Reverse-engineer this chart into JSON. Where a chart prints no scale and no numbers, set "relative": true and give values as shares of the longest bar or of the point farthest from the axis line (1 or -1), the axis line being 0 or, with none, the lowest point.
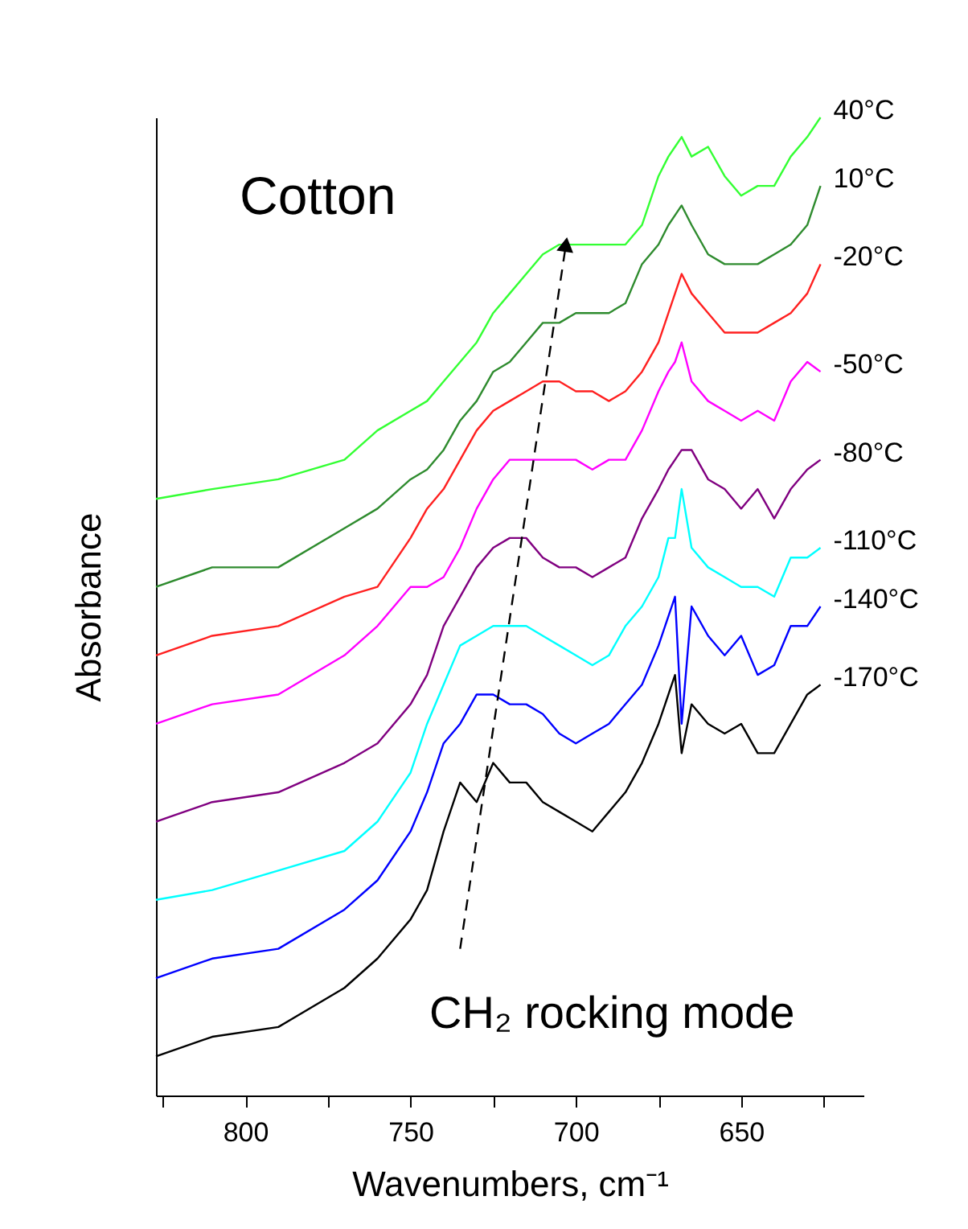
{
  "chart_data": {
    "type": "line",
    "relative": true,
    "xlabel": "Wavenumbers, cm⁻¹",
    "ylabel": "Absorbance",
    "annotations": [
      "Cotton",
      "CH₂ rocking mode"
    ],
    "xlim": [
      827,
      613
    ],
    "xticks": [
      {
        "value": 825,
        "label": null
      },
      800,
      {
        "value": 775,
        "label": null
      },
      750,
      {
        "value": 725,
        "label": null
      },
      700,
      {
        "value": 675,
        "label": null
      },
      650,
      {
        "value": 625,
        "label": null
      }
    ],
    "grid": false,
    "x": [
      827,
      810,
      790,
      770,
      760,
      750,
      745,
      740,
      735,
      730,
      725,
      720,
      715,
      710,
      705,
      700,
      695,
      690,
      685,
      680,
      675,
      672,
      670,
      668,
      665,
      660,
      655,
      650,
      645,
      640,
      635,
      630,
      626
    ],
    "series": [
      {
        "name": "40°C",
        "color": "#33ff33",
        "values": [
          0.61,
          0.62,
          0.63,
          0.65,
          0.68,
          0.7,
          0.71,
          0.73,
          0.75,
          0.77,
          0.8,
          0.82,
          0.84,
          0.86,
          0.87,
          0.87,
          0.87,
          0.87,
          0.87,
          0.89,
          0.94,
          0.96,
          0.97,
          0.98,
          0.96,
          0.97,
          0.94,
          0.92,
          0.93,
          0.93,
          0.96,
          0.98,
          1
        ]
      },
      {
        "name": "10°C",
        "color": "#2e8b2e",
        "values": [
          0.52,
          0.54,
          0.54,
          0.58,
          0.6,
          0.63,
          0.64,
          0.66,
          0.69,
          0.71,
          0.74,
          0.75,
          0.77,
          0.79,
          0.79,
          0.8,
          0.8,
          0.8,
          0.81,
          0.85,
          0.87,
          0.89,
          0.9,
          0.91,
          0.89,
          0.86,
          0.85,
          0.85,
          0.85,
          0.86,
          0.87,
          0.89,
          0.93
        ]
      },
      {
        "name": "-20°C",
        "color": "#ff2020",
        "values": [
          0.45,
          0.47,
          0.48,
          0.51,
          0.52,
          0.57,
          0.6,
          0.62,
          0.65,
          0.68,
          0.7,
          0.71,
          0.72,
          0.73,
          0.73,
          0.72,
          0.72,
          0.71,
          0.72,
          0.74,
          0.77,
          0.8,
          0.82,
          0.84,
          0.82,
          0.8,
          0.78,
          0.78,
          0.78,
          0.79,
          0.8,
          0.82,
          0.85
        ]
      },
      {
        "name": "-50°C",
        "color": "#ff00ff",
        "values": [
          0.38,
          0.4,
          0.41,
          0.45,
          0.48,
          0.52,
          0.52,
          0.53,
          0.56,
          0.6,
          0.63,
          0.65,
          0.65,
          0.65,
          0.65,
          0.65,
          0.64,
          0.65,
          0.65,
          0.68,
          0.72,
          0.74,
          0.75,
          0.77,
          0.73,
          0.71,
          0.7,
          0.69,
          0.7,
          0.69,
          0.73,
          0.75,
          0.74
        ]
      },
      {
        "name": "-80°C",
        "color": "#800080",
        "values": [
          0.28,
          0.3,
          0.31,
          0.34,
          0.36,
          0.4,
          0.43,
          0.48,
          0.51,
          0.54,
          0.56,
          0.57,
          0.57,
          0.55,
          0.54,
          0.54,
          0.53,
          0.54,
          0.55,
          0.59,
          0.62,
          0.64,
          0.65,
          0.66,
          0.66,
          0.63,
          0.62,
          0.6,
          0.62,
          0.59,
          0.62,
          0.64,
          0.65
        ]
      },
      {
        "name": "-110°C",
        "color": "#00ffff",
        "values": [
          0.2,
          0.21,
          0.23,
          0.25,
          0.28,
          0.33,
          0.38,
          0.42,
          0.46,
          0.47,
          0.48,
          0.48,
          0.48,
          0.47,
          0.46,
          0.45,
          0.44,
          0.45,
          0.48,
          0.5,
          0.53,
          0.57,
          0.57,
          0.62,
          0.56,
          0.54,
          0.53,
          0.52,
          0.52,
          0.51,
          0.55,
          0.55,
          0.56
        ]
      },
      {
        "name": "-140°C",
        "color": "#0000ff",
        "values": [
          0.12,
          0.14,
          0.15,
          0.19,
          0.22,
          0.27,
          0.31,
          0.36,
          0.38,
          0.41,
          0.41,
          0.4,
          0.4,
          0.39,
          0.37,
          0.36,
          0.37,
          0.38,
          0.4,
          0.42,
          0.46,
          0.49,
          0.51,
          0.38,
          0.5,
          0.47,
          0.45,
          0.47,
          0.43,
          0.44,
          0.48,
          0.48,
          0.5
        ]
      },
      {
        "name": "-170°C",
        "color": "#000000",
        "values": [
          0.04,
          0.06,
          0.07,
          0.11,
          0.14,
          0.18,
          0.21,
          0.27,
          0.32,
          0.3,
          0.34,
          0.32,
          0.32,
          0.3,
          0.29,
          0.28,
          0.27,
          0.29,
          0.31,
          0.34,
          0.38,
          0.41,
          0.43,
          0.35,
          0.4,
          0.38,
          0.37,
          0.38,
          0.35,
          0.35,
          0.38,
          0.41,
          0.42
        ]
      },
      {
        "type": "line",
        "color": "#000000",
        "line_style": "dashed",
        "x": [
          735,
          703
        ],
        "values": [
          0.15,
          0.87
        ]
      }
    ]
  }
}
